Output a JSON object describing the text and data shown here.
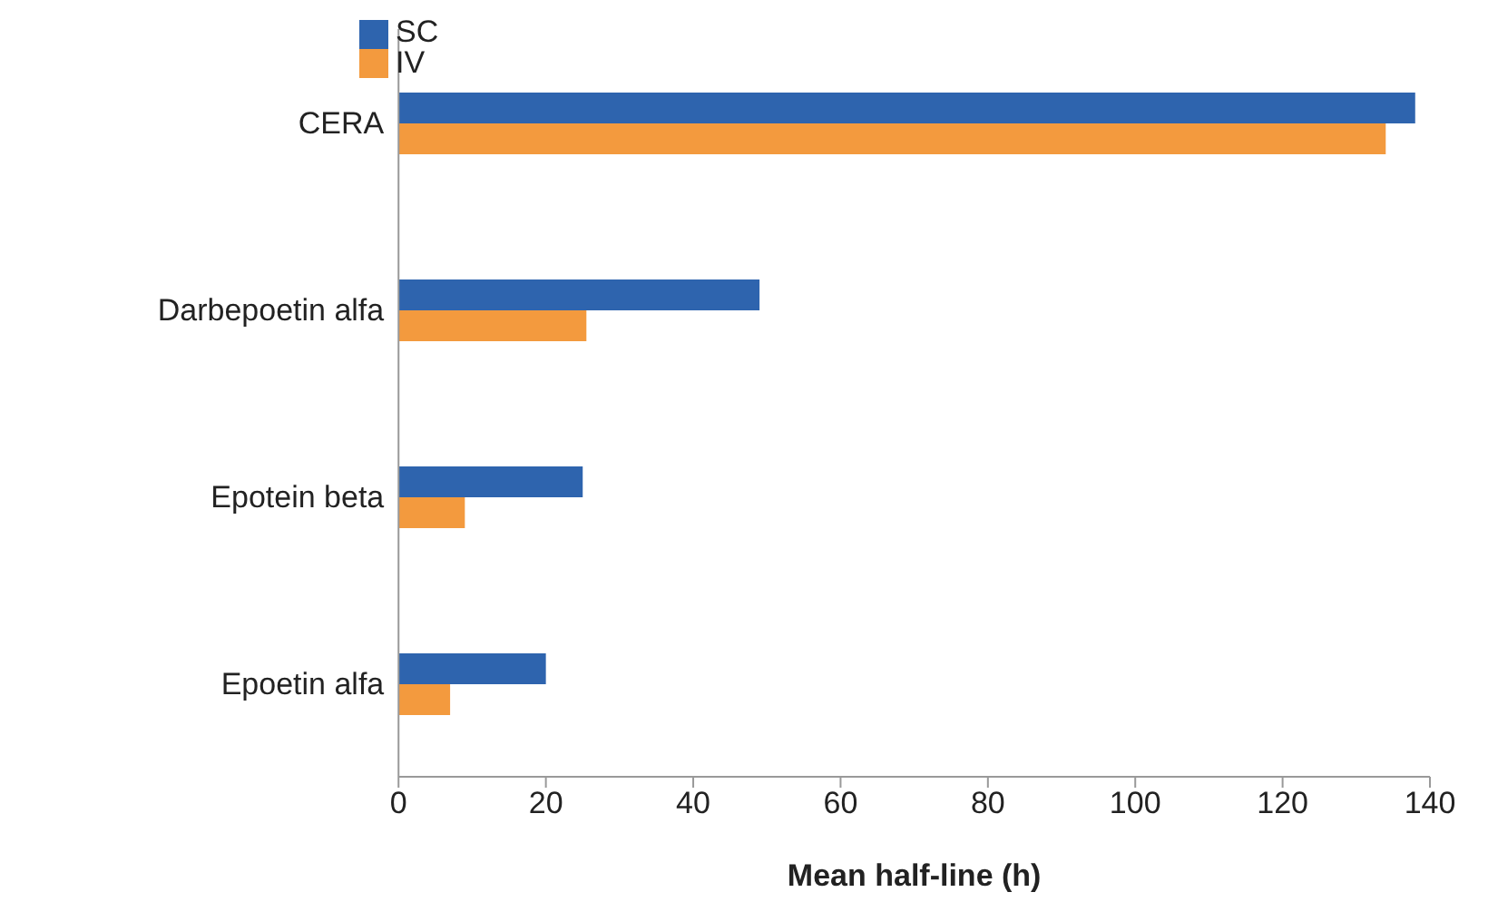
{
  "chart_data": {
    "type": "bar",
    "orientation": "horizontal",
    "xlabel": "Mean half-line (h)",
    "categories": [
      "CERA",
      "Darbepoetin alfa",
      "Epotein beta",
      "Epoetin alfa"
    ],
    "series": [
      {
        "name": "SC",
        "color": "#2e64ae",
        "values": [
          138,
          49,
          25,
          20
        ]
      },
      {
        "name": "IV",
        "color": "#f39a3e",
        "values": [
          134,
          25.5,
          9,
          7
        ]
      }
    ],
    "xlim": [
      0,
      140
    ],
    "xticks": [
      0,
      20,
      40,
      60,
      80,
      100,
      120,
      140
    ],
    "grid": false,
    "legend": "top left"
  }
}
